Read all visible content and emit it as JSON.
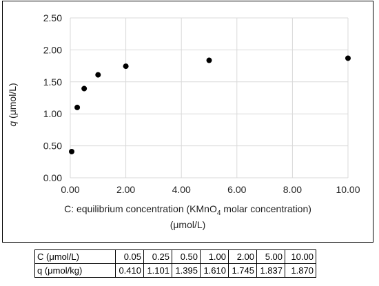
{
  "chart_data": {
    "type": "scatter",
    "title": "",
    "xlabel_parts": [
      "C: equilibrium concentration (KMnO",
      "4",
      " molar concentration)"
    ],
    "xlabel_line2": "(μmol/L)",
    "ylabel_italic": "q",
    "ylabel_rest": " (μmol/L)",
    "xlim": [
      0,
      10
    ],
    "ylim": [
      0,
      2.5
    ],
    "xticks": [
      "0.00",
      "2.00",
      "4.00",
      "6.00",
      "8.00",
      "10.00"
    ],
    "yticks": [
      "0.00",
      "0.50",
      "1.00",
      "1.50",
      "2.00",
      "2.50"
    ],
    "grid": true,
    "marker_color": "#000000",
    "grid_color": "#d9d9d9",
    "x": [
      0.05,
      0.25,
      0.5,
      1.0,
      2.0,
      5.0,
      10.0
    ],
    "y": [
      0.41,
      1.1,
      1.395,
      1.61,
      1.745,
      1.837,
      1.87
    ]
  },
  "table": {
    "rows": [
      {
        "label": "C (μmol/L)",
        "values": [
          "0.05",
          "0.25",
          "0.50",
          "1.00",
          "2.00",
          "5.00",
          "10.00"
        ]
      },
      {
        "label": "q (μmol/kg)",
        "values": [
          "0.410",
          "1.101",
          "1.395",
          "1.610",
          "1.745",
          "1.837",
          "1.870"
        ]
      }
    ]
  }
}
